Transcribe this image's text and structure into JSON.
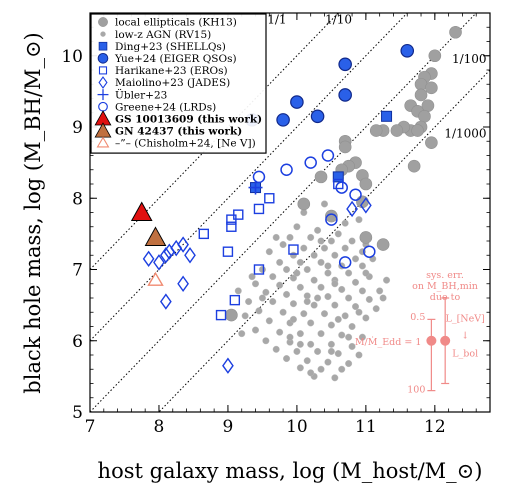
{
  "chart_data": {
    "type": "scatter",
    "xlabel": "host galaxy mass, log (M_host/M_⊙)",
    "ylabel": "black hole mass, log (M_BH/M_⊙)",
    "xlim": [
      7.0,
      12.8
    ],
    "ylim": [
      5.0,
      10.6
    ],
    "xticks": [
      "7",
      "8",
      "9",
      "10",
      "11",
      "12"
    ],
    "yticks": [
      "5",
      "6",
      "7",
      "8",
      "9",
      "10"
    ],
    "grid": false,
    "legend_position": "top-left",
    "ratio_lines": [
      {
        "label": "1/1",
        "offset": 0
      },
      {
        "label": "1/10",
        "offset": -1
      },
      {
        "label": "1/100",
        "offset": -2
      },
      {
        "label": "1/1000",
        "offset": -3
      }
    ],
    "series": [
      {
        "name": "local ellipticals (KH13)",
        "marker": "circle-large",
        "color": "#a0a0a0",
        "points": [
          [
            12.3,
            10.33
          ],
          [
            12.0,
            10.0
          ],
          [
            11.95,
            9.75
          ],
          [
            11.85,
            9.7
          ],
          [
            11.8,
            9.6
          ],
          [
            11.95,
            9.55
          ],
          [
            11.8,
            9.45
          ],
          [
            11.65,
            9.3
          ],
          [
            11.75,
            9.22
          ],
          [
            11.9,
            9.3
          ],
          [
            11.85,
            9.15
          ],
          [
            11.8,
            9.0
          ],
          [
            11.65,
            8.95
          ],
          [
            11.75,
            8.95
          ],
          [
            11.55,
            9.0
          ],
          [
            11.45,
            8.95
          ],
          [
            11.25,
            8.95
          ],
          [
            11.15,
            8.95
          ],
          [
            10.7,
            8.8
          ],
          [
            10.7,
            8.72
          ],
          [
            10.85,
            8.5
          ],
          [
            10.75,
            8.45
          ],
          [
            10.95,
            8.32
          ],
          [
            10.65,
            8.4
          ],
          [
            11.0,
            8.2
          ],
          [
            11.7,
            8.45
          ],
          [
            11.95,
            8.78
          ],
          [
            10.95,
            7.95
          ],
          [
            10.5,
            7.75
          ],
          [
            10.35,
            8.3
          ],
          [
            10.1,
            7.92
          ],
          [
            11.0,
            7.45
          ],
          [
            11.25,
            7.35
          ],
          [
            9.05,
            6.36
          ]
        ]
      },
      {
        "name": "low-z AGN (RV15)",
        "marker": "circle-small",
        "color": "#a8a8a8",
        "points": [
          [
            10.4,
            7.92
          ],
          [
            10.9,
            7.7
          ],
          [
            10.0,
            7.6
          ],
          [
            10.3,
            7.55
          ],
          [
            10.6,
            7.5
          ],
          [
            9.9,
            7.45
          ],
          [
            10.2,
            7.45
          ],
          [
            10.5,
            7.4
          ],
          [
            10.8,
            7.4
          ],
          [
            11.0,
            7.35
          ],
          [
            9.8,
            7.35
          ],
          [
            10.1,
            7.3
          ],
          [
            10.4,
            7.3
          ],
          [
            10.7,
            7.3
          ],
          [
            10.95,
            7.25
          ],
          [
            9.6,
            7.25
          ],
          [
            9.95,
            7.2
          ],
          [
            10.25,
            7.2
          ],
          [
            10.55,
            7.2
          ],
          [
            10.85,
            7.15
          ],
          [
            9.75,
            7.1
          ],
          [
            10.05,
            7.1
          ],
          [
            10.35,
            7.1
          ],
          [
            10.65,
            7.05
          ],
          [
            10.95,
            7.05
          ],
          [
            9.5,
            7.0
          ],
          [
            9.85,
            7.0
          ],
          [
            10.15,
            7.0
          ],
          [
            10.45,
            6.95
          ],
          [
            10.75,
            6.95
          ],
          [
            11.05,
            6.9
          ],
          [
            9.65,
            6.9
          ],
          [
            9.95,
            6.88
          ],
          [
            10.25,
            6.85
          ],
          [
            10.55,
            6.85
          ],
          [
            10.85,
            6.82
          ],
          [
            9.4,
            6.8
          ],
          [
            9.75,
            6.78
          ],
          [
            10.05,
            6.75
          ],
          [
            10.35,
            6.75
          ],
          [
            10.65,
            6.72
          ],
          [
            10.95,
            6.7
          ],
          [
            11.2,
            6.7
          ],
          [
            9.55,
            6.68
          ],
          [
            9.85,
            6.65
          ],
          [
            10.15,
            6.63
          ],
          [
            10.45,
            6.62
          ],
          [
            10.75,
            6.6
          ],
          [
            11.05,
            6.58
          ],
          [
            9.3,
            6.55
          ],
          [
            9.65,
            6.55
          ],
          [
            9.95,
            6.52
          ],
          [
            10.25,
            6.5
          ],
          [
            10.55,
            6.5
          ],
          [
            10.85,
            6.48
          ],
          [
            11.15,
            6.45
          ],
          [
            9.45,
            6.42
          ],
          [
            9.8,
            6.4
          ],
          [
            10.1,
            6.38
          ],
          [
            10.4,
            6.38
          ],
          [
            10.7,
            6.35
          ],
          [
            11.0,
            6.32
          ],
          [
            9.6,
            6.28
          ],
          [
            9.9,
            6.25
          ],
          [
            10.2,
            6.25
          ],
          [
            10.5,
            6.22
          ],
          [
            10.8,
            6.2
          ],
          [
            9.4,
            6.15
          ],
          [
            9.75,
            6.12
          ],
          [
            10.05,
            6.1
          ],
          [
            10.35,
            6.1
          ],
          [
            10.65,
            6.08
          ],
          [
            10.95,
            6.05
          ],
          [
            9.55,
            6.0
          ],
          [
            9.9,
            5.98
          ],
          [
            10.2,
            5.95
          ],
          [
            10.5,
            5.95
          ],
          [
            10.8,
            5.92
          ],
          [
            9.7,
            5.88
          ],
          [
            10.0,
            5.85
          ],
          [
            10.3,
            5.85
          ],
          [
            10.6,
            5.82
          ],
          [
            10.9,
            5.8
          ],
          [
            9.85,
            5.75
          ],
          [
            10.15,
            5.72
          ],
          [
            10.45,
            5.7
          ],
          [
            10.75,
            5.68
          ],
          [
            10.05,
            5.62
          ],
          [
            10.35,
            5.6
          ],
          [
            10.65,
            5.6
          ],
          [
            10.25,
            5.5
          ],
          [
            10.55,
            5.48
          ],
          [
            9.2,
            6.1
          ],
          [
            9.25,
            6.35
          ],
          [
            9.35,
            6.9
          ],
          [
            9.5,
            6.6
          ],
          [
            10.0,
            6.95
          ],
          [
            10.1,
            7.8
          ],
          [
            10.3,
            6.6
          ],
          [
            10.6,
            6.3
          ],
          [
            10.7,
            7.65
          ],
          [
            10.2,
            5.55
          ],
          [
            11.3,
            6.85
          ],
          [
            11.25,
            6.6
          ],
          [
            9.15,
            6.7
          ],
          [
            10.45,
            7.05
          ],
          [
            10.75,
            6.05
          ],
          [
            9.7,
            7.45
          ],
          [
            10.9,
            6.4
          ],
          [
            11.1,
            7.15
          ],
          [
            9.95,
            6.3
          ],
          [
            10.15,
            6.55
          ],
          [
            10.35,
            7.4
          ],
          [
            10.55,
            6.8
          ],
          [
            9.9,
            6.05
          ],
          [
            10.5,
            5.85
          ],
          [
            10.05,
            5.95
          ],
          [
            11.0,
            6.95
          ]
        ]
      },
      {
        "name": "Ding+23 (SHELLQs)",
        "marker": "square-filled",
        "color": "#2a60e8",
        "points": [
          [
            10.6,
            8.3
          ],
          [
            11.3,
            9.15
          ],
          [
            9.4,
            8.15
          ]
        ]
      },
      {
        "name": "Yue+24 (EIGER QSOs)",
        "marker": "circle-filled",
        "color": "#2a60e8",
        "points": [
          [
            11.6,
            10.07
          ],
          [
            10.7,
            9.88
          ],
          [
            10.7,
            9.45
          ],
          [
            10.0,
            9.35
          ],
          [
            9.8,
            9.1
          ],
          [
            9.35,
            9.1
          ],
          [
            10.3,
            9.15
          ]
        ]
      },
      {
        "name": "Harikane+23 (EROs)",
        "marker": "square-open",
        "color": "#1c3fe0",
        "points": [
          [
            8.65,
            7.5
          ],
          [
            9.05,
            7.7
          ],
          [
            9.15,
            7.77
          ],
          [
            9.45,
            7.85
          ],
          [
            9.6,
            8.0
          ],
          [
            9.0,
            7.25
          ],
          [
            9.45,
            7.0
          ],
          [
            9.1,
            6.57
          ],
          [
            8.9,
            6.36
          ],
          [
            9.05,
            7.6
          ],
          [
            9.95,
            7.28
          ],
          [
            10.6,
            8.2
          ]
        ]
      },
      {
        "name": "Maiolino+23 (JADES)",
        "marker": "diamond-open",
        "color": "#1c3fe0",
        "points": [
          [
            8.35,
            7.35
          ],
          [
            8.25,
            7.3
          ],
          [
            8.15,
            7.25
          ],
          [
            8.45,
            7.2
          ],
          [
            8.1,
            7.2
          ],
          [
            8.0,
            7.1
          ],
          [
            8.35,
            6.8
          ],
          [
            8.1,
            6.55
          ],
          [
            7.85,
            7.15
          ],
          [
            9.0,
            5.65
          ],
          [
            11.0,
            7.9
          ],
          [
            10.8,
            7.85
          ]
        ]
      },
      {
        "name": "Übler+23",
        "marker": "plus",
        "color": "#1c3fe0",
        "points": [
          [
            9.4,
            8.15
          ]
        ]
      },
      {
        "name": "Greene+24 (LRDs)",
        "marker": "circle-open",
        "color": "#1c3fe0",
        "points": [
          [
            9.85,
            8.4
          ],
          [
            10.2,
            8.5
          ],
          [
            10.45,
            8.6
          ],
          [
            10.65,
            8.15
          ],
          [
            10.85,
            8.05
          ],
          [
            9.45,
            8.3
          ],
          [
            10.7,
            7.1
          ],
          [
            11.05,
            7.25
          ],
          [
            10.5,
            7.7
          ]
        ]
      },
      {
        "name": "GS 10013609 (this work)",
        "marker": "triangle-filled",
        "color": "#e01010",
        "points": [
          [
            7.75,
            7.8
          ]
        ]
      },
      {
        "name": "GN 42437 (this work)",
        "marker": "triangle-filled",
        "color": "#c07040",
        "points": [
          [
            7.95,
            7.45
          ]
        ]
      },
      {
        "name": "–”– (Chisholm+24, [Ne V])",
        "marker": "triangle-open",
        "color": "#f08a70",
        "points": [
          [
            7.95,
            6.85
          ]
        ]
      }
    ],
    "error_inset": {
      "color": "#f08a88",
      "title_lines": [
        "sys. err.",
        "on M_BH,min",
        "due to"
      ],
      "left_label": "Ṁ/Ṁ_Edd = 1",
      "left_ticks": [
        "0.5",
        "100"
      ],
      "left_point": [
        11.95,
        6.0
      ],
      "left_range": [
        5.3,
        6.3
      ],
      "right_label_top": "L_[NeV]",
      "right_label_bottom": "L_bol",
      "right_arrow": "↓",
      "right_point": [
        12.15,
        6.0
      ],
      "right_range": [
        5.4,
        6.6
      ]
    }
  }
}
